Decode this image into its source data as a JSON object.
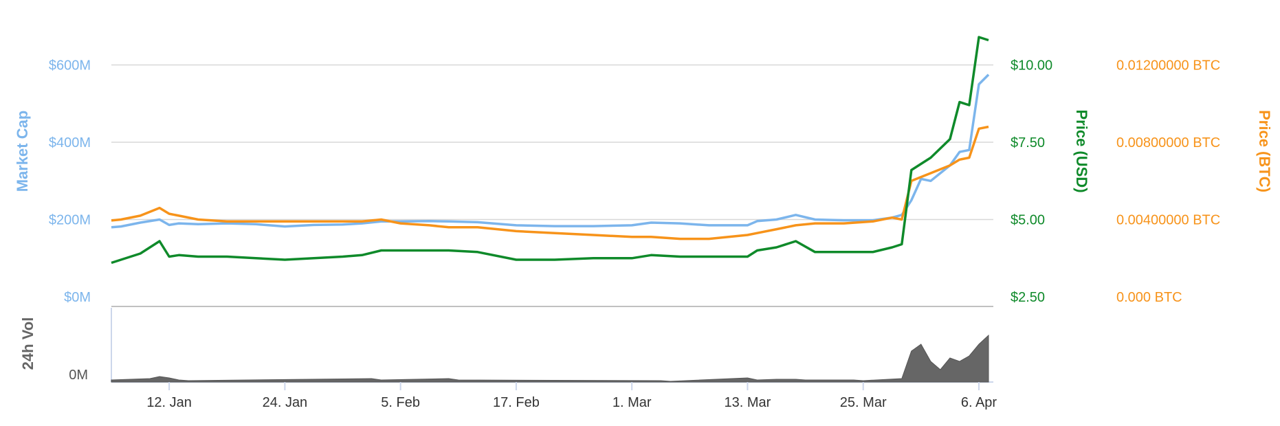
{
  "chart_data": {
    "type": "line",
    "x_tick_labels": [
      "12. Jan",
      "24. Jan",
      "5. Feb",
      "17. Feb",
      "1. Mar",
      "13. Mar",
      "25. Mar",
      "6. Apr"
    ],
    "y_axes": {
      "market_cap": {
        "title": "Market Cap",
        "tick_labels": [
          "$0M",
          "$200M",
          "$400M",
          "$600M"
        ],
        "tick_values": [
          0,
          200,
          400,
          600
        ],
        "unit": "M USD"
      },
      "price_usd": {
        "title": "Price (USD)",
        "tick_labels": [
          "$2.50",
          "$5.00",
          "$7.50",
          "$10.00"
        ],
        "tick_values": [
          2.5,
          5.0,
          7.5,
          10.0
        ]
      },
      "price_btc": {
        "title": "Price (BTC)",
        "tick_labels": [
          "0.000 BTC",
          "0.00400000 BTC",
          "0.00800000 BTC",
          "0.01200000 BTC"
        ],
        "tick_values": [
          0,
          0.004,
          0.008,
          0.012
        ]
      },
      "volume": {
        "title": "24h Vol",
        "tick_labels": [
          "0M"
        ]
      }
    },
    "grid": true,
    "colors": {
      "market_cap": "#7cb5ec",
      "price_usd": "#0f8a2a",
      "price_btc": "#f7931a",
      "volume": "#666666",
      "grid": "#d8d8d8",
      "axis": "#ccd6eb"
    },
    "series": [
      {
        "key": "market_cap",
        "axis": "market_cap",
        "x": [
          "Jan 06",
          "Jan 07",
          "Jan 09",
          "Jan 11",
          "Jan 12",
          "Jan 13",
          "Jan 15",
          "Jan 18",
          "Jan 21",
          "Jan 24",
          "Jan 27",
          "Jan 30",
          "Feb 01",
          "Feb 03",
          "Feb 05",
          "Feb 08",
          "Feb 10",
          "Feb 13",
          "Feb 17",
          "Feb 21",
          "Feb 25",
          "Mar 01",
          "Mar 03",
          "Mar 06",
          "Mar 09",
          "Mar 13",
          "Mar 14",
          "Mar 16",
          "Mar 18",
          "Mar 20",
          "Mar 23",
          "Mar 26",
          "Mar 28",
          "Mar 29",
          "Mar 30",
          "Mar 31",
          "Apr 01",
          "Apr 02",
          "Apr 03",
          "Apr 04",
          "Apr 05",
          "Apr 06",
          "Apr 07"
        ],
        "y": [
          180,
          182,
          192,
          200,
          186,
          190,
          188,
          190,
          188,
          182,
          186,
          187,
          190,
          195,
          195,
          196,
          195,
          193,
          185,
          183,
          183,
          185,
          192,
          190,
          185,
          185,
          196,
          200,
          212,
          200,
          198,
          198,
          205,
          212,
          250,
          305,
          300,
          320,
          340,
          375,
          380,
          550,
          575
        ]
      },
      {
        "key": "price_usd",
        "axis": "price_usd",
        "x": [
          "Jan 06",
          "Jan 07",
          "Jan 09",
          "Jan 11",
          "Jan 12",
          "Jan 13",
          "Jan 15",
          "Jan 18",
          "Jan 21",
          "Jan 24",
          "Jan 27",
          "Jan 30",
          "Feb 01",
          "Feb 03",
          "Feb 05",
          "Feb 08",
          "Feb 10",
          "Feb 13",
          "Feb 17",
          "Feb 21",
          "Feb 25",
          "Mar 01",
          "Mar 03",
          "Mar 06",
          "Mar 09",
          "Mar 13",
          "Mar 14",
          "Mar 16",
          "Mar 18",
          "Mar 20",
          "Mar 23",
          "Mar 26",
          "Mar 28",
          "Mar 29",
          "Mar 30",
          "Mar 31",
          "Apr 01",
          "Apr 02",
          "Apr 03",
          "Apr 04",
          "Apr 05",
          "Apr 06",
          "Apr 07"
        ],
        "y": [
          3.6,
          3.7,
          3.9,
          4.3,
          3.8,
          3.85,
          3.8,
          3.8,
          3.75,
          3.7,
          3.75,
          3.8,
          3.85,
          4.0,
          4.0,
          4.0,
          4.0,
          3.95,
          3.7,
          3.7,
          3.75,
          3.75,
          3.85,
          3.8,
          3.8,
          3.8,
          4.0,
          4.1,
          4.3,
          3.95,
          3.95,
          3.95,
          4.1,
          4.2,
          6.6,
          6.8,
          7.0,
          7.3,
          7.6,
          8.8,
          8.7,
          10.9,
          10.8
        ]
      },
      {
        "key": "price_btc",
        "axis": "price_btc",
        "x": [
          "Jan 06",
          "Jan 07",
          "Jan 09",
          "Jan 11",
          "Jan 12",
          "Jan 13",
          "Jan 15",
          "Jan 18",
          "Jan 21",
          "Jan 24",
          "Jan 27",
          "Jan 30",
          "Feb 01",
          "Feb 03",
          "Feb 05",
          "Feb 08",
          "Feb 10",
          "Feb 13",
          "Feb 17",
          "Feb 21",
          "Feb 25",
          "Mar 01",
          "Mar 03",
          "Mar 06",
          "Mar 09",
          "Mar 13",
          "Mar 14",
          "Mar 16",
          "Mar 18",
          "Mar 20",
          "Mar 23",
          "Mar 26",
          "Mar 28",
          "Mar 29",
          "Mar 30",
          "Mar 31",
          "Apr 01",
          "Apr 02",
          "Apr 03",
          "Apr 04",
          "Apr 05",
          "Apr 06",
          "Apr 07"
        ],
        "y": [
          0.00395,
          0.004,
          0.0042,
          0.0046,
          0.0043,
          0.0042,
          0.004,
          0.0039,
          0.0039,
          0.0039,
          0.0039,
          0.0039,
          0.0039,
          0.004,
          0.0038,
          0.0037,
          0.0036,
          0.0036,
          0.0034,
          0.0033,
          0.0032,
          0.0031,
          0.0031,
          0.003,
          0.003,
          0.0032,
          0.0033,
          0.0035,
          0.0037,
          0.0038,
          0.0038,
          0.0039,
          0.0041,
          0.004,
          0.006,
          0.0062,
          0.0064,
          0.0066,
          0.0068,
          0.0071,
          0.0072,
          0.0087,
          0.0088
        ]
      },
      {
        "key": "volume",
        "axis": "volume",
        "type": "area",
        "x": [
          "Jan 06",
          "Jan 10",
          "Jan 11",
          "Jan 12",
          "Jan 13",
          "Jan 14",
          "Feb 02",
          "Feb 03",
          "Feb 10",
          "Feb 11",
          "Mar 04",
          "Mar 05",
          "Mar 13",
          "Mar 14",
          "Mar 16",
          "Mar 18",
          "Mar 19",
          "Mar 24",
          "Mar 25",
          "Mar 29",
          "Mar 30",
          "Mar 31",
          "Apr 01",
          "Apr 02",
          "Apr 03",
          "Apr 04",
          "Apr 05",
          "Apr 06",
          "Apr 07"
        ],
        "y": [
          0.03,
          0.05,
          0.08,
          0.06,
          0.03,
          0.02,
          0.05,
          0.03,
          0.05,
          0.03,
          0.02,
          0.01,
          0.06,
          0.03,
          0.04,
          0.04,
          0.03,
          0.03,
          0.02,
          0.05,
          0.45,
          0.55,
          0.3,
          0.18,
          0.35,
          0.3,
          0.38,
          0.55,
          0.68
        ]
      }
    ]
  }
}
